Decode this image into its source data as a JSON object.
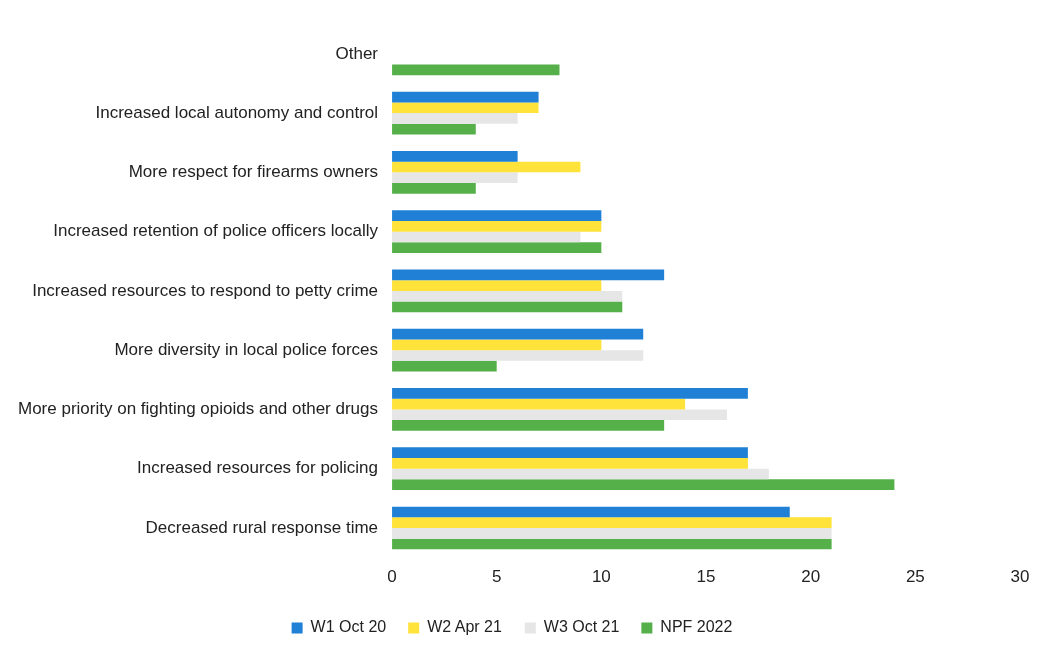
{
  "chart_data": {
    "type": "bar",
    "orientation": "horizontal",
    "categories": [
      "Other",
      "Increased local autonomy and control",
      "More respect for firearms owners",
      "Increased retention of police officers locally",
      "Increased resources to respond to petty crime",
      "More diversity in local police forces",
      "More priority on fighting opioids and other drugs",
      "Increased resources for policing",
      "Decreased rural response time"
    ],
    "series": [
      {
        "name": "W1 Oct 20",
        "color": "#1f80d6",
        "values": [
          null,
          7,
          6,
          10,
          13,
          12,
          17,
          17,
          19
        ]
      },
      {
        "name": "W2 Apr 21",
        "color": "#ffe23a",
        "values": [
          null,
          7,
          9,
          10,
          10,
          10,
          14,
          17,
          21
        ]
      },
      {
        "name": "W3 Oct 21",
        "color": "#e6e6e6",
        "values": [
          null,
          6,
          6,
          9,
          11,
          12,
          16,
          18,
          21
        ]
      },
      {
        "name": "NPF 2022",
        "color": "#55b04a",
        "values": [
          8,
          4,
          4,
          10,
          11,
          5,
          13,
          24,
          21
        ]
      }
    ],
    "xlim": [
      0,
      30
    ],
    "xticks": [
      0,
      5,
      10,
      15,
      20,
      25,
      30
    ],
    "grid": false,
    "legend": "bottom"
  }
}
